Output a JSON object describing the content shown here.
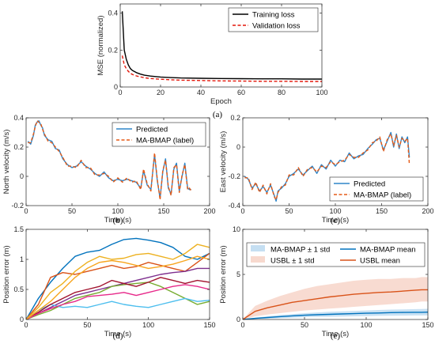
{
  "chart_data": [
    {
      "panel": "(a)",
      "type": "line",
      "xlabel": "Epoch",
      "ylabel": "MSE (normalized)",
      "xlim": [
        0,
        100
      ],
      "ylim": [
        0,
        0.45
      ],
      "xticks": [
        0,
        20,
        40,
        60,
        80,
        100
      ],
      "yticks": [
        0,
        0.2,
        0.4
      ],
      "grid": false,
      "legend": "top-right",
      "colors": {
        "Training loss": "#000000",
        "Validation loss": "#e3170a"
      },
      "series": [
        {
          "name": "Training loss",
          "style": "solid",
          "x": [
            1,
            2,
            3,
            4,
            5,
            6,
            8,
            10,
            12,
            15,
            20,
            25,
            30,
            40,
            50,
            60,
            70,
            80,
            90,
            100
          ],
          "y": [
            0.41,
            0.2,
            0.15,
            0.12,
            0.1,
            0.09,
            0.078,
            0.07,
            0.064,
            0.059,
            0.054,
            0.051,
            0.049,
            0.047,
            0.046,
            0.045,
            0.044,
            0.044,
            0.043,
            0.043
          ]
        },
        {
          "name": "Validation loss",
          "style": "dashed",
          "x": [
            1,
            2,
            3,
            4,
            5,
            6,
            8,
            10,
            12,
            15,
            20,
            25,
            30,
            40,
            50,
            60,
            70,
            80,
            90,
            100
          ],
          "y": [
            0.17,
            0.12,
            0.1,
            0.085,
            0.075,
            0.068,
            0.06,
            0.055,
            0.05,
            0.046,
            0.042,
            0.039,
            0.037,
            0.035,
            0.033,
            0.032,
            0.031,
            0.031,
            0.03,
            0.03
          ]
        }
      ]
    },
    {
      "panel": "(b)",
      "type": "line",
      "xlabel": "Time (s)",
      "ylabel": "North velocity (m/s)",
      "xlim": [
        0,
        200
      ],
      "ylim": [
        -0.2,
        0.4
      ],
      "xticks": [
        0,
        50,
        100,
        150,
        200
      ],
      "yticks": [
        -0.2,
        0,
        0.2,
        0.4
      ],
      "grid": false,
      "legend": "top-right",
      "colors": {
        "Predicted": "#2e86c9",
        "MA-BMAP (label)": "#e55a16"
      },
      "series": [
        {
          "name": "Predicted",
          "style": "solid",
          "x": [
            2,
            5,
            8,
            10,
            12,
            14,
            16,
            18,
            20,
            24,
            28,
            32,
            36,
            40,
            45,
            50,
            55,
            60,
            65,
            70,
            75,
            80,
            85,
            90,
            95,
            100,
            105,
            110,
            115,
            120,
            125,
            128,
            132,
            136,
            140,
            143,
            146,
            149,
            152,
            155,
            158,
            161,
            164,
            167,
            170,
            173,
            176,
            178,
            180
          ],
          "y": [
            0.24,
            0.22,
            0.28,
            0.35,
            0.37,
            0.38,
            0.35,
            0.33,
            0.28,
            0.25,
            0.24,
            0.19,
            0.18,
            0.12,
            0.08,
            0.06,
            0.07,
            0.1,
            0.07,
            0.05,
            0.02,
            0.0,
            0.03,
            -0.01,
            -0.03,
            -0.02,
            -0.03,
            -0.02,
            -0.03,
            -0.04,
            -0.08,
            0.04,
            -0.06,
            -0.09,
            0.15,
            -0.03,
            -0.15,
            0.03,
            0.12,
            -0.08,
            -0.12,
            0.05,
            0.09,
            -0.1,
            0.0,
            0.09,
            -0.08,
            -0.09,
            -0.09
          ]
        },
        {
          "name": "MA-BMAP (label)",
          "style": "dashed",
          "x": [
            2,
            5,
            8,
            10,
            12,
            14,
            16,
            18,
            20,
            24,
            28,
            32,
            36,
            40,
            45,
            50,
            55,
            60,
            65,
            70,
            75,
            80,
            85,
            90,
            95,
            100,
            105,
            110,
            115,
            120,
            125,
            128,
            132,
            136,
            140,
            143,
            146,
            149,
            152,
            155,
            158,
            161,
            164,
            167,
            170,
            173,
            176,
            178,
            180
          ],
          "y": [
            0.23,
            0.23,
            0.29,
            0.34,
            0.38,
            0.37,
            0.36,
            0.32,
            0.29,
            0.24,
            0.23,
            0.2,
            0.17,
            0.13,
            0.07,
            0.07,
            0.06,
            0.11,
            0.06,
            0.06,
            0.01,
            0.01,
            0.02,
            0.0,
            -0.04,
            -0.01,
            -0.04,
            -0.01,
            -0.04,
            -0.03,
            -0.09,
            0.05,
            -0.05,
            -0.1,
            0.16,
            -0.02,
            -0.16,
            0.04,
            0.11,
            -0.07,
            -0.13,
            0.06,
            0.08,
            -0.11,
            0.01,
            0.08,
            -0.09,
            -0.08,
            -0.1
          ]
        }
      ]
    },
    {
      "panel": "(c)",
      "type": "line",
      "xlabel": "Time (s)",
      "ylabel": "East velocity (m/s)",
      "xlim": [
        0,
        200
      ],
      "ylim": [
        -0.4,
        0.2
      ],
      "xticks": [
        0,
        50,
        100,
        150,
        200
      ],
      "yticks": [
        -0.4,
        -0.2,
        0,
        0.2
      ],
      "grid": false,
      "legend": "bottom-right",
      "colors": {
        "Predicted": "#2e86c9",
        "MA-BMAP (label)": "#e55a16"
      },
      "series": [
        {
          "name": "Predicted",
          "style": "solid",
          "x": [
            2,
            6,
            10,
            14,
            18,
            22,
            26,
            30,
            34,
            36,
            38,
            42,
            46,
            50,
            55,
            60,
            65,
            70,
            75,
            80,
            85,
            90,
            95,
            100,
            105,
            110,
            115,
            120,
            125,
            130,
            135,
            140,
            144,
            148,
            152,
            156,
            160,
            163,
            166,
            169,
            172,
            175,
            178,
            180
          ],
          "y": [
            -0.2,
            -0.22,
            -0.28,
            -0.25,
            -0.3,
            -0.27,
            -0.31,
            -0.26,
            -0.33,
            -0.37,
            -0.3,
            -0.28,
            -0.25,
            -0.2,
            -0.18,
            -0.15,
            -0.19,
            -0.16,
            -0.13,
            -0.18,
            -0.12,
            -0.15,
            -0.09,
            -0.13,
            -0.09,
            -0.1,
            -0.04,
            -0.08,
            -0.06,
            -0.05,
            -0.01,
            0.02,
            0.05,
            0.06,
            -0.02,
            0.04,
            0.1,
            0.0,
            0.09,
            -0.01,
            0.07,
            0.03,
            0.07,
            -0.07
          ]
        },
        {
          "name": "MA-BMAP (label)",
          "style": "dashed",
          "x": [
            2,
            6,
            10,
            14,
            18,
            22,
            26,
            30,
            34,
            36,
            38,
            42,
            46,
            50,
            55,
            60,
            65,
            70,
            75,
            80,
            85,
            90,
            95,
            100,
            105,
            110,
            115,
            120,
            125,
            130,
            135,
            140,
            144,
            148,
            152,
            156,
            160,
            163,
            166,
            169,
            172,
            175,
            178,
            180
          ],
          "y": [
            -0.21,
            -0.21,
            -0.29,
            -0.24,
            -0.31,
            -0.26,
            -0.32,
            -0.25,
            -0.34,
            -0.36,
            -0.31,
            -0.27,
            -0.26,
            -0.19,
            -0.19,
            -0.14,
            -0.2,
            -0.15,
            -0.14,
            -0.17,
            -0.13,
            -0.14,
            -0.1,
            -0.12,
            -0.1,
            -0.09,
            -0.05,
            -0.07,
            -0.07,
            -0.04,
            -0.02,
            0.03,
            0.04,
            0.07,
            -0.03,
            0.05,
            0.09,
            0.01,
            0.08,
            0.0,
            0.06,
            0.04,
            0.06,
            -0.12
          ]
        }
      ]
    },
    {
      "panel": "(d)",
      "type": "line",
      "xlabel": "Time (s)",
      "ylabel": "Position error (m)",
      "xlim": [
        0,
        150
      ],
      "ylim": [
        0,
        1.5
      ],
      "xticks": [
        0,
        50,
        100,
        150
      ],
      "yticks": [
        0,
        0.5,
        1,
        1.5
      ],
      "grid": false,
      "legend": "none",
      "series": [
        {
          "color": "#0072bd",
          "x": [
            0,
            10,
            20,
            30,
            40,
            50,
            60,
            70,
            80,
            90,
            100,
            110,
            120,
            130,
            140,
            150
          ],
          "y": [
            0,
            0.35,
            0.62,
            0.85,
            1.05,
            1.12,
            1.15,
            1.25,
            1.33,
            1.35,
            1.32,
            1.28,
            1.2,
            1.05,
            1.0,
            1.1
          ]
        },
        {
          "color": "#d95319",
          "x": [
            0,
            10,
            20,
            30,
            40,
            50,
            60,
            70,
            80,
            90,
            100,
            110,
            120,
            130,
            140,
            150
          ],
          "y": [
            0,
            0.25,
            0.7,
            0.78,
            0.75,
            0.8,
            0.85,
            0.9,
            0.85,
            0.88,
            0.95,
            0.9,
            0.85,
            0.8,
            0.95,
            1.1
          ]
        },
        {
          "color": "#edb120",
          "x": [
            0,
            10,
            20,
            30,
            40,
            50,
            60,
            70,
            80,
            90,
            100,
            110,
            120,
            130,
            140,
            150
          ],
          "y": [
            0,
            0.2,
            0.45,
            0.6,
            0.8,
            0.95,
            1.05,
            1.0,
            1.02,
            1.08,
            1.1,
            1.05,
            1.0,
            1.1,
            1.25,
            1.2
          ]
        },
        {
          "color": "#7e2f8e",
          "x": [
            0,
            10,
            20,
            30,
            40,
            50,
            60,
            70,
            80,
            90,
            100,
            110,
            120,
            130,
            140,
            150
          ],
          "y": [
            0,
            0.1,
            0.2,
            0.3,
            0.4,
            0.45,
            0.5,
            0.55,
            0.6,
            0.65,
            0.7,
            0.75,
            0.78,
            0.8,
            0.85,
            0.85
          ]
        },
        {
          "color": "#77ac30",
          "x": [
            0,
            10,
            20,
            30,
            40,
            50,
            60,
            70,
            80,
            90,
            100,
            110,
            120,
            130,
            140,
            150
          ],
          "y": [
            0,
            0.08,
            0.15,
            0.25,
            0.35,
            0.4,
            0.45,
            0.55,
            0.58,
            0.6,
            0.62,
            0.55,
            0.45,
            0.35,
            0.25,
            0.3
          ]
        },
        {
          "color": "#4dbeee",
          "x": [
            0,
            10,
            20,
            30,
            40,
            50,
            60,
            70,
            80,
            90,
            100,
            110,
            120,
            130,
            140,
            150
          ],
          "y": [
            0,
            0.15,
            0.25,
            0.2,
            0.22,
            0.2,
            0.25,
            0.3,
            0.25,
            0.22,
            0.2,
            0.25,
            0.3,
            0.35,
            0.3,
            0.32
          ]
        },
        {
          "color": "#a2142f",
          "x": [
            0,
            10,
            20,
            30,
            40,
            50,
            60,
            70,
            80,
            90,
            100,
            110,
            120,
            130,
            140,
            150
          ],
          "y": [
            0,
            0.12,
            0.25,
            0.35,
            0.45,
            0.5,
            0.55,
            0.65,
            0.6,
            0.55,
            0.62,
            0.7,
            0.65,
            0.6,
            0.65,
            0.62
          ]
        },
        {
          "color": "#e7298a",
          "x": [
            0,
            10,
            20,
            30,
            40,
            50,
            60,
            70,
            80,
            90,
            100,
            110,
            120,
            130,
            140,
            150
          ],
          "y": [
            0,
            0.1,
            0.18,
            0.25,
            0.3,
            0.38,
            0.4,
            0.42,
            0.45,
            0.4,
            0.45,
            0.5,
            0.55,
            0.58,
            0.55,
            0.5
          ]
        },
        {
          "color": "#f7a51e",
          "x": [
            0,
            10,
            20,
            30,
            40,
            50,
            60,
            70,
            80,
            90,
            100,
            110,
            120,
            130,
            140,
            150
          ],
          "y": [
            0,
            0.15,
            0.3,
            0.5,
            0.7,
            0.85,
            0.95,
            0.98,
            0.95,
            0.9,
            0.85,
            0.88,
            0.92,
            0.98,
            1.05,
            1.0
          ]
        }
      ]
    },
    {
      "panel": "(e)",
      "type": "area",
      "xlabel": "Time (s)",
      "ylabel": "Position error (m)",
      "xlim": [
        0,
        150
      ],
      "ylim": [
        0,
        10
      ],
      "xticks": [
        0,
        50,
        100,
        150
      ],
      "yticks": [
        0,
        5,
        10
      ],
      "grid": false,
      "legend": "top",
      "x": [
        0,
        10,
        20,
        30,
        40,
        50,
        60,
        70,
        80,
        90,
        100,
        110,
        120,
        130,
        140,
        145,
        150
      ],
      "series": [
        {
          "name": "MA-BMAP ± 1 std",
          "kind": "band",
          "color": "#b7d7ef",
          "lower": [
            0,
            0.05,
            0.1,
            0.15,
            0.2,
            0.25,
            0.28,
            0.3,
            0.32,
            0.35,
            0.38,
            0.4,
            0.42,
            0.43,
            0.45,
            0.45,
            0.46
          ],
          "upper": [
            0,
            0.2,
            0.35,
            0.5,
            0.6,
            0.7,
            0.78,
            0.85,
            0.9,
            0.95,
            1.0,
            1.05,
            1.1,
            1.12,
            1.15,
            1.16,
            1.18
          ]
        },
        {
          "name": "USBL ± 1 std",
          "kind": "band",
          "color": "#f5cfc2",
          "lower": [
            0,
            0.35,
            0.55,
            0.7,
            0.85,
            1.0,
            1.1,
            1.2,
            1.3,
            1.4,
            1.5,
            1.6,
            1.7,
            1.8,
            1.9,
            2.0,
            2.0
          ],
          "upper": [
            0,
            1.5,
            2.1,
            2.6,
            3.0,
            3.4,
            3.7,
            3.9,
            4.1,
            4.3,
            4.4,
            4.5,
            4.5,
            4.6,
            4.6,
            4.7,
            4.7
          ]
        },
        {
          "name": "MA-BMAP mean",
          "kind": "line",
          "color": "#0072bd",
          "y": [
            0,
            0.12,
            0.22,
            0.32,
            0.4,
            0.47,
            0.53,
            0.57,
            0.61,
            0.65,
            0.69,
            0.72,
            0.76,
            0.78,
            0.8,
            0.8,
            0.82
          ]
        },
        {
          "name": "USBL mean",
          "kind": "line",
          "color": "#d95319",
          "y": [
            0,
            0.9,
            1.3,
            1.6,
            1.9,
            2.1,
            2.3,
            2.5,
            2.65,
            2.8,
            2.9,
            3.0,
            3.05,
            3.15,
            3.25,
            3.3,
            3.3
          ]
        }
      ]
    }
  ],
  "captions": [
    "(a)",
    "(b)",
    "(c)",
    "(d)",
    "(e)"
  ]
}
